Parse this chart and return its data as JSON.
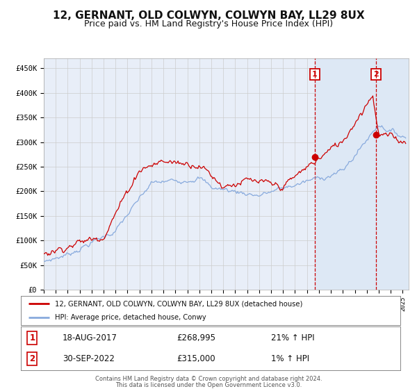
{
  "title": "12, GERNANT, OLD COLWYN, COLWYN BAY, LL29 8UX",
  "subtitle": "Price paid vs. HM Land Registry's House Price Index (HPI)",
  "title_fontsize": 11,
  "subtitle_fontsize": 9,
  "ylabel_ticks": [
    "£0",
    "£50K",
    "£100K",
    "£150K",
    "£200K",
    "£250K",
    "£300K",
    "£350K",
    "£400K",
    "£450K"
  ],
  "ytick_values": [
    0,
    50000,
    100000,
    150000,
    200000,
    250000,
    300000,
    350000,
    400000,
    450000
  ],
  "ylim": [
    0,
    470000
  ],
  "xlim_start": 1995.0,
  "xlim_end": 2025.5,
  "background_color": "#ffffff",
  "plot_bg_color": "#e8eef8",
  "grid_color": "#cccccc",
  "red_line_color": "#cc0000",
  "blue_line_color": "#88aadd",
  "marker1_date": 2017.63,
  "marker1_value": 268995,
  "marker1_label": "18-AUG-2017",
  "marker1_price": "£268,995",
  "marker1_hpi": "21% ↑ HPI",
  "marker2_date": 2022.75,
  "marker2_value": 315000,
  "marker2_label": "30-SEP-2022",
  "marker2_price": "£315,000",
  "marker2_hpi": "1% ↑ HPI",
  "vline1_x": 2017.63,
  "vline2_x": 2022.75,
  "legend_red_label": "12, GERNANT, OLD COLWYN, COLWYN BAY, LL29 8UX (detached house)",
  "legend_blue_label": "HPI: Average price, detached house, Conwy",
  "footer_line1": "Contains HM Land Registry data © Crown copyright and database right 2024.",
  "footer_line2": "This data is licensed under the Open Government Licence v3.0.",
  "shaded_region_color": "#dde8f5",
  "box_color": "#cc0000",
  "num1_x": 2017.63,
  "num2_x": 2022.75
}
